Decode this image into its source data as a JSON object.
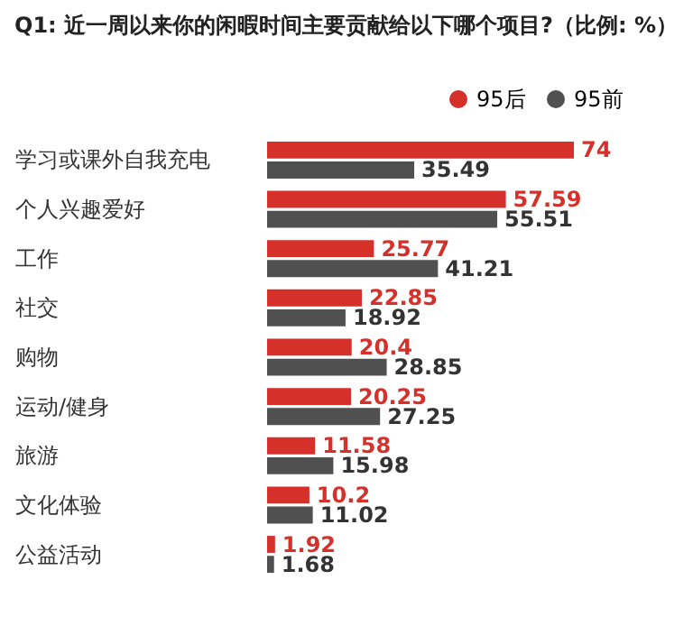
{
  "chart_data": {
    "type": "bar",
    "orientation": "horizontal",
    "title": "Q1: 近一周以来你的闲暇时间主要贡献给以下哪个项目?（比例: %）",
    "categories": [
      "学习或课外自我充电",
      "个人兴趣爱好",
      "工作",
      "社交",
      "购物",
      "运动/健身",
      "旅游",
      "文化体验",
      "公益活动"
    ],
    "series": [
      {
        "name": "95后",
        "color": "#d6302b",
        "values": [
          74,
          57.59,
          25.77,
          22.85,
          20.4,
          20.25,
          11.58,
          10.2,
          1.92
        ]
      },
      {
        "name": "95前",
        "color": "#505050",
        "values": [
          35.49,
          55.51,
          41.21,
          18.92,
          28.85,
          27.25,
          15.98,
          11.02,
          1.68
        ]
      }
    ],
    "data_labels": true,
    "legend": "top right",
    "grid": false
  }
}
